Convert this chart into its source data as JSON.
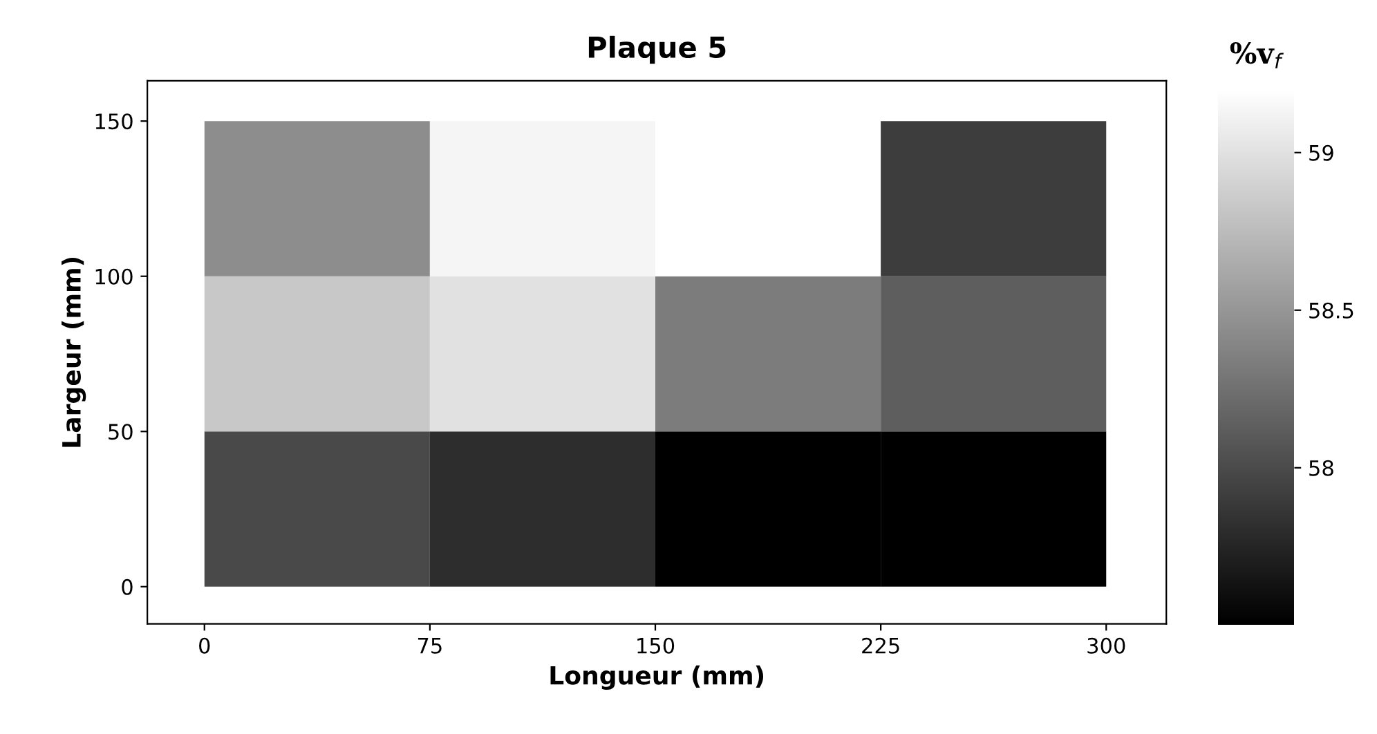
{
  "chart_data": {
    "type": "heatmap",
    "title": "Plaque 5",
    "xlabel": "Longueur (mm)",
    "ylabel": "Largeur (mm)",
    "clabel": "%v$_{f}$",
    "cells": [
      [
        58.44,
        59.13,
        59.2,
        57.91
      ],
      [
        58.83,
        59.0,
        58.33,
        58.13
      ],
      [
        57.99,
        57.8,
        57.5,
        57.5
      ]
    ],
    "xlim": [
      -19,
      320
    ],
    "ylim": [
      -12,
      163
    ],
    "xticks": [
      0,
      75,
      150,
      225,
      300
    ],
    "yticks": [
      0,
      50,
      100,
      150
    ],
    "clim": [
      57.5,
      59.2
    ],
    "cticks": [
      58,
      58.5,
      59
    ],
    "grid": false
  }
}
